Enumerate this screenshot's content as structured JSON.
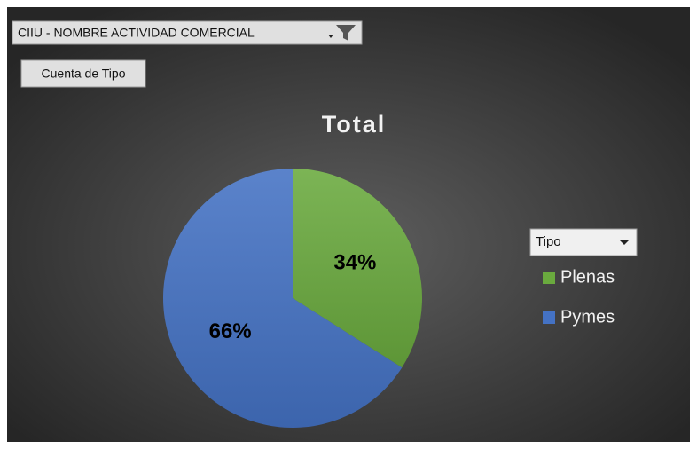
{
  "chart_data": {
    "type": "pie",
    "title": "Total",
    "filter_button": "CIIU - NOMBRE ACTIVIDAD COMERCIAL",
    "value_button": "Cuenta de Tipo",
    "legend_title": "Tipo",
    "categories": [
      "Plenas",
      "Pymes"
    ],
    "values": [
      34,
      66
    ],
    "value_labels": [
      "34%",
      "66%"
    ],
    "colors": [
      "#6aaa3e",
      "#4472c4"
    ]
  }
}
